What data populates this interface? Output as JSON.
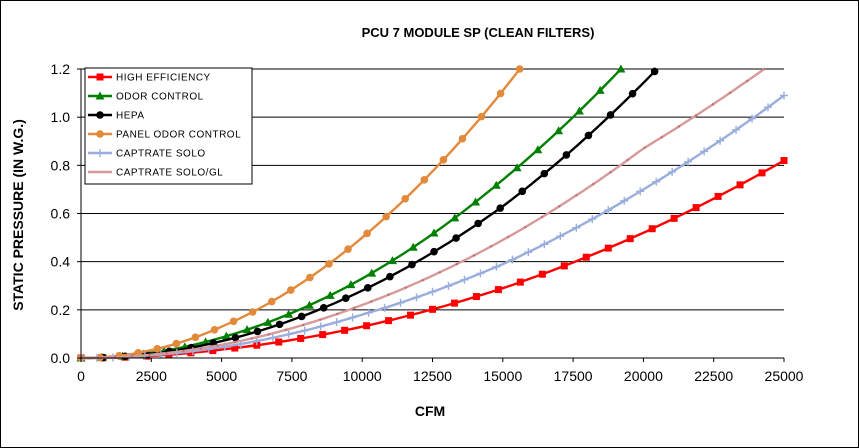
{
  "chart_data": {
    "type": "line",
    "title": "PCU 7 MODULE SP (CLEAN FILTERS)",
    "xlabel": "CFM",
    "ylabel": "STATIC PRESSURE (IN W.G.)",
    "xlim": [
      0,
      25000
    ],
    "ylim": [
      0,
      1.2
    ],
    "x_ticks": [
      "0",
      "2500",
      "5000",
      "7500",
      "10000",
      "12500",
      "15000",
      "17500",
      "20000",
      "22500",
      "25000"
    ],
    "y_ticks": [
      "0.0",
      "0.2",
      "0.4",
      "0.6",
      "0.8",
      "1.0",
      "1.2"
    ],
    "grid": "horizontal",
    "legend_position": "top-left",
    "series": [
      {
        "name": "HIGH EFFICIENCY",
        "color": "#ff0000",
        "marker": "square",
        "x": [
          0,
          5000,
          10000,
          15000,
          20000,
          25000
        ],
        "y": [
          0.0,
          0.035,
          0.13,
          0.29,
          0.52,
          0.82
        ]
      },
      {
        "name": "ODOR CONTROL",
        "color": "#008000",
        "marker": "triangle",
        "x": [
          0,
          5000,
          10000,
          15000,
          19200
        ],
        "y": [
          0.0,
          0.085,
          0.33,
          0.74,
          1.2
        ]
      },
      {
        "name": "HEPA",
        "color": "#000000",
        "marker": "circle",
        "x": [
          0,
          5000,
          10000,
          15000,
          20400
        ],
        "y": [
          0.0,
          0.07,
          0.28,
          0.63,
          1.19
        ]
      },
      {
        "name": "PANEL ODOR CONTROL",
        "color": "#e2893a",
        "marker": "circle",
        "x": [
          0,
          5000,
          10000,
          15000,
          15600
        ],
        "y": [
          0.0,
          0.13,
          0.5,
          1.11,
          1.2
        ]
      },
      {
        "name": "CAPTRATE SOLO",
        "color": "#9aaede",
        "marker": "plus",
        "x": [
          0,
          5000,
          10000,
          15000,
          20000,
          25000
        ],
        "y": [
          0.0,
          0.045,
          0.18,
          0.39,
          0.7,
          1.09
        ]
      },
      {
        "name": "CAPTRATE SOLO/GL",
        "color": "#d79a9a",
        "marker": "none",
        "x": [
          0,
          5000,
          10000,
          15000,
          20000,
          24300
        ],
        "y": [
          0.0,
          0.055,
          0.22,
          0.49,
          0.87,
          1.2
        ]
      }
    ]
  }
}
